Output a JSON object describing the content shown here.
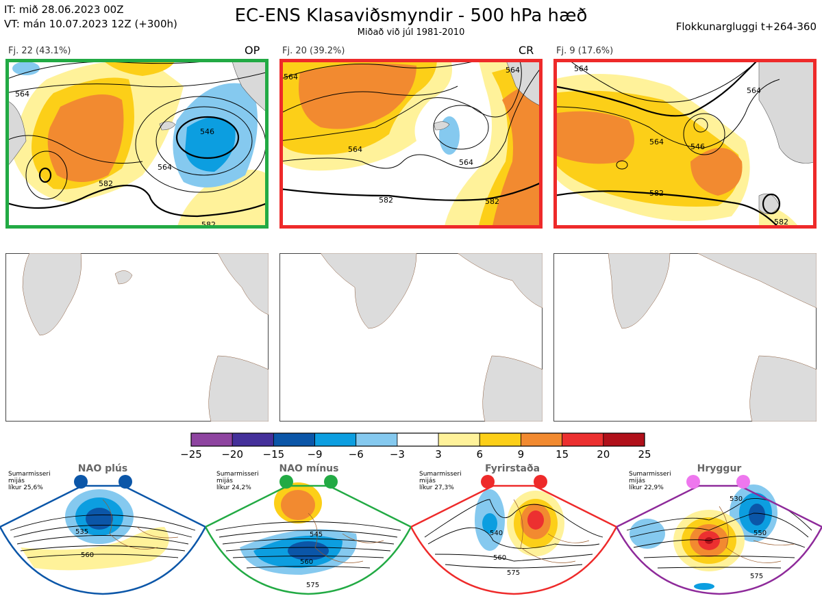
{
  "header": {
    "init_time": "IT: mið 28.06.2023 00Z",
    "valid_time": "VT: mán 10.07.2023 12Z  (+300h)",
    "title": "EC-ENS Klasaviðsmyndir - 500 hPa hæð",
    "subtitle": "Miðað við júl 1981-2010",
    "window": "Flokkunargluggi t+264-360"
  },
  "clusters": [
    {
      "label": "Fj. 22 (43.1%)",
      "tag": "OP",
      "frame_color": "#22aa44",
      "contours": [
        "564",
        "546",
        "564",
        "582",
        "582"
      ]
    },
    {
      "label": "Fj. 20 (39.2%)",
      "tag": "CR",
      "frame_color": "#ee2a2a",
      "contours": [
        "564",
        "564",
        "564",
        "564",
        "582",
        "582"
      ]
    },
    {
      "label": "Fj. 9 (17.6%)",
      "tag": "",
      "frame_color": "#ee2a2a",
      "contours": [
        "564",
        "564",
        "564",
        "546",
        "582",
        "582"
      ]
    }
  ],
  "colorbar": {
    "ticks": [
      "−25",
      "−20",
      "−15",
      "−9",
      "−6",
      "−3",
      "3",
      "6",
      "9",
      "15",
      "20",
      "25"
    ],
    "colors": [
      "#8e44a0",
      "#44309a",
      "#0b56a8",
      "#0c9ee0",
      "#85c9ef",
      "#ffffff",
      "#fff29a",
      "#fccf18",
      "#f28a30",
      "#ec3030",
      "#b0101a"
    ]
  },
  "regimes": [
    {
      "name": "NAO plús",
      "note": [
        "Sumarmisseri",
        "mijás",
        "líkur 25,6%"
      ],
      "dot_color": "#0b56a8",
      "frame_color": "#0b56a8",
      "contours": [
        "535",
        "560"
      ]
    },
    {
      "name": "NAO mínus",
      "note": [
        "Sumarmisseri",
        "mijás",
        "líkur 24,2%"
      ],
      "dot_color": "#22aa44",
      "frame_color": "#22aa44",
      "contours": [
        "545",
        "560",
        "575"
      ]
    },
    {
      "name": "Fyrirstaða",
      "note": [
        "Sumarmisseri",
        "mijás",
        "líkur 27,3%"
      ],
      "dot_color": "#ee2a2a",
      "frame_color": "#ee2a2a",
      "contours": [
        "540",
        "560",
        "575"
      ]
    },
    {
      "name": "Hryggur",
      "note": [
        "Sumarmisseri",
        "mijás",
        "líkur 22,9%"
      ],
      "dot_color": "#ee77ee",
      "frame_color": "#8e2a9a",
      "contours": [
        "530",
        "550",
        "575"
      ]
    }
  ]
}
